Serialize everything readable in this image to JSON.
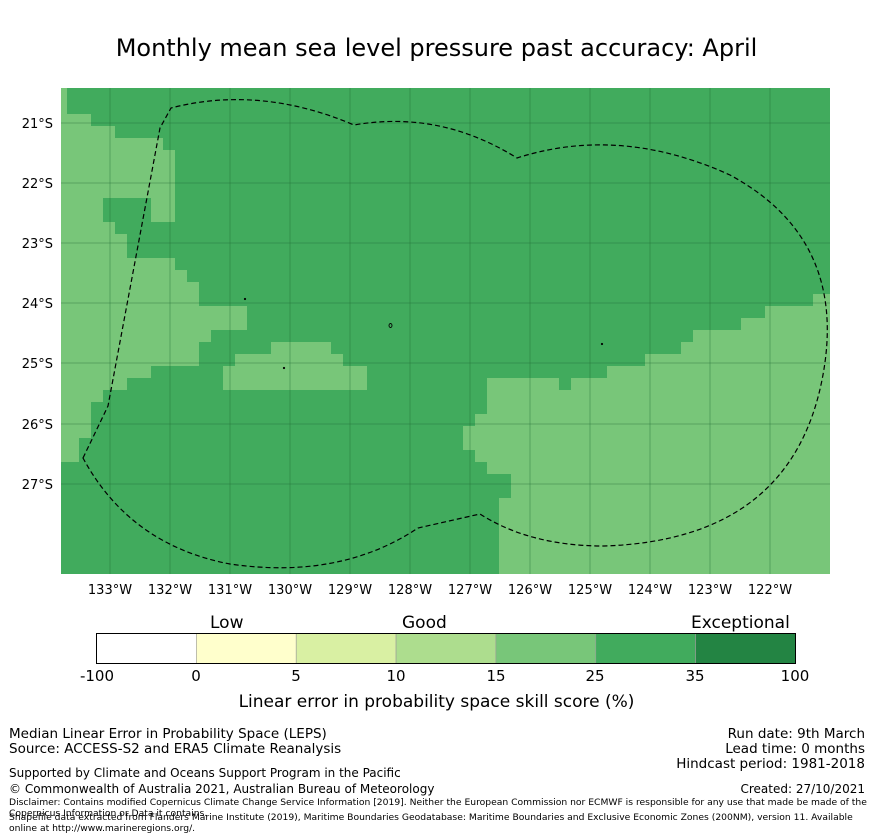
{
  "title": "Monthly mean sea level pressure past accuracy: April",
  "map": {
    "lat_labels": [
      "21°S",
      "22°S",
      "23°S",
      "24°S",
      "25°S",
      "26°S",
      "27°S"
    ],
    "lon_labels": [
      "133°W",
      "132°W",
      "131°W",
      "130°W",
      "129°W",
      "128°W",
      "127°W",
      "126°W",
      "125°W",
      "124°W",
      "123°W",
      "122°W"
    ],
    "boundary": "EEZ dashed outline",
    "colors": {
      "good_15_25": "#78c679",
      "good_25_35": "#41ab5d"
    }
  },
  "colorbar": {
    "categories": [
      "Low",
      "Good",
      "Exceptional"
    ],
    "ticks": [
      "-100",
      "0",
      "5",
      "10",
      "15",
      "25",
      "35",
      "100"
    ],
    "colors": [
      "#ffffff",
      "#ffffcc",
      "#d9f0a3",
      "#addd8e",
      "#78c679",
      "#41ab5d",
      "#238443"
    ],
    "label": "Linear error in probability space skill score (%)"
  },
  "footer": {
    "line1": "Median Linear Error in Probability Space (LEPS)",
    "line2": "Source: ACCESS-S2 and ERA5 Climate Reanalysis",
    "support": "Supported by Climate and Oceans Support Program in the Pacific",
    "copyright": "© Commonwealth of Australia 2021, Australian Bureau of Meteorology",
    "run_date": "Run date: 9th March",
    "lead_time": "Lead time: 0 months",
    "hindcast": "Hindcast period: 1981-2018",
    "created": "Created: 27/10/2021",
    "disclaimer": "Disclaimer: Contains modified Copernicus Climate Change Service Information [2019]. Neither the European Commission nor ECMWF is responsible for any use that made be made of the Copernicus Information or Data it contains.",
    "shapefile": "Shapefile data extracted from Flanders Marine Institute (2019), Maritime Boundaries Geodatabase: Maritime Boundaries and Exclusive Economic Zones (200NM), version 11. Available online at http://www.marineregions.org/."
  }
}
